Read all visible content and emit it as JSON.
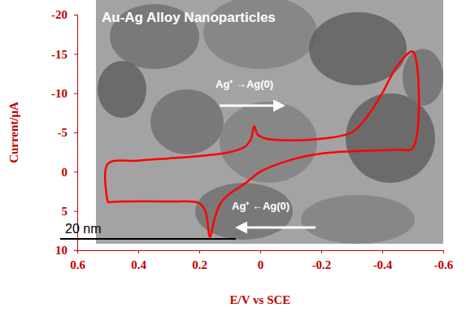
{
  "chart_data": {
    "type": "line",
    "color": "#ff0000",
    "x_label": "E/V vs SCE",
    "y_label": "Current/μA",
    "annotations": [
      "Au-Ag Alloy Nanoparticles",
      "Ag⁺ →Ag(0)",
      "Ag⁺ ←Ag(0)",
      "20 nm"
    ],
    "xlim": [
      0.6,
      -0.6
    ],
    "ylim": [
      -20,
      10
    ],
    "xticks": [
      0.6,
      0.4,
      0.2,
      0,
      -0.2,
      -0.4,
      -0.6
    ],
    "yticks": [
      -20,
      -15,
      -10,
      -5,
      0,
      5,
      10
    ],
    "grid": false,
    "x": [
      0.5,
      0.5,
      0.4,
      0.3,
      0.2,
      0.1,
      0.05,
      0.03,
      0.02,
      0.01,
      0.0,
      -0.02,
      -0.1,
      -0.2,
      -0.3,
      -0.35,
      -0.4,
      -0.45,
      -0.5,
      -0.5,
      -0.45,
      -0.3,
      -0.2,
      -0.1,
      0.0,
      0.05,
      0.1,
      0.13,
      0.15,
      0.165,
      0.18,
      0.2,
      0.3,
      0.45,
      0.5
    ],
    "values": [
      3.9,
      -1.0,
      -1.4,
      -1.7,
      -2.0,
      -2.5,
      -3.2,
      -4.2,
      -5.8,
      -4.8,
      -4.5,
      -4.2,
      -4.0,
      -4.2,
      -5.0,
      -7.0,
      -10.0,
      -13.5,
      -15.3,
      -3.0,
      -2.8,
      -2.6,
      -2.3,
      -1.5,
      0.0,
      1.5,
      2.8,
      4.0,
      6.0,
      8.3,
      5.0,
      4.0,
      3.8,
      3.8,
      3.9
    ]
  }
}
